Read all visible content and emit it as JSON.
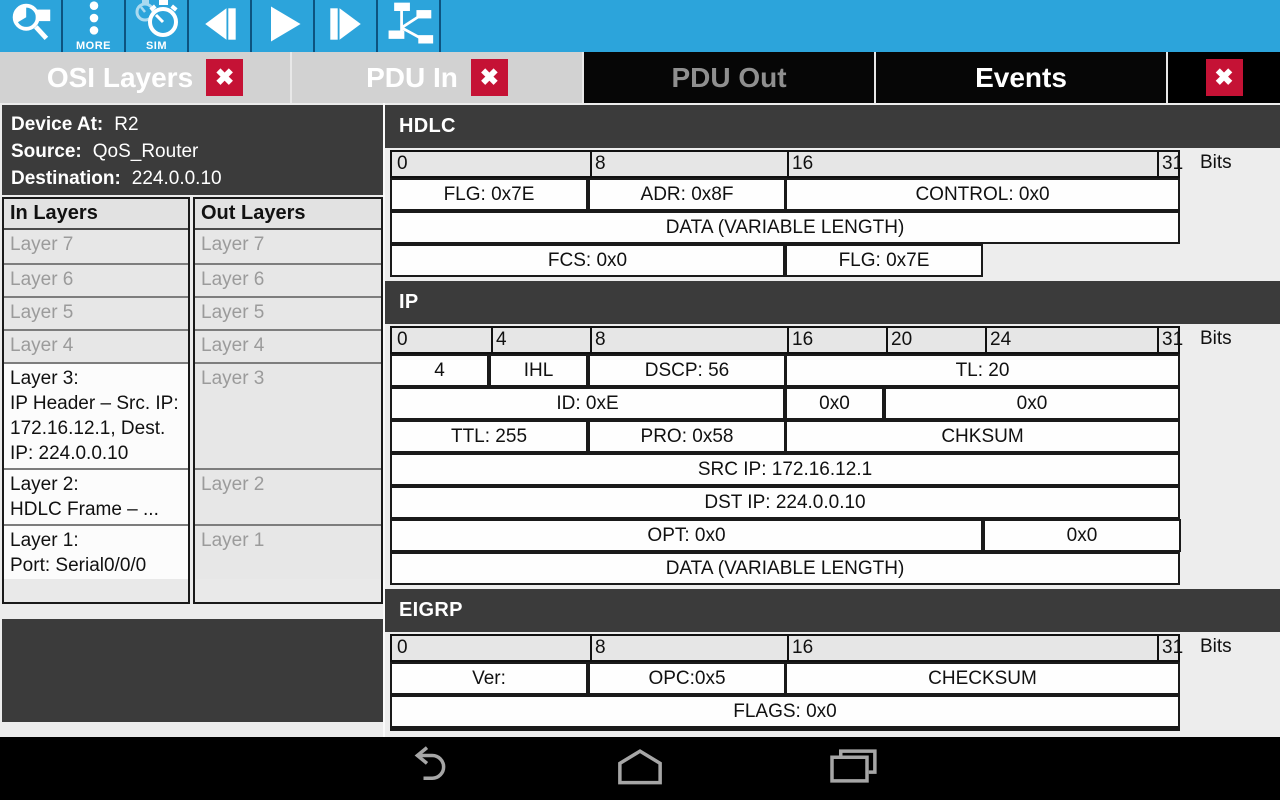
{
  "toolbar": {
    "buttons": [
      {
        "name": "inspect",
        "icon": "magnifier-inspect-icon",
        "label": ""
      },
      {
        "name": "more",
        "icon": "more-dots-icon",
        "label": "MORE"
      },
      {
        "name": "simulation",
        "icon": "stopwatch-sim-icon",
        "label": "SIM"
      },
      {
        "name": "step-back",
        "icon": "step-back-icon",
        "label": ""
      },
      {
        "name": "play",
        "icon": "play-icon",
        "label": ""
      },
      {
        "name": "step-forward",
        "icon": "step-forward-icon",
        "label": ""
      },
      {
        "name": "topology",
        "icon": "topology-icon",
        "label": ""
      }
    ]
  },
  "icons": {
    "close_glyph": "✖"
  },
  "tabs": [
    {
      "label": "OSI Layers",
      "closable": true,
      "open": true
    },
    {
      "label": "PDU In",
      "closable": true,
      "open": true
    },
    {
      "label": "PDU Out",
      "closable": false,
      "open": false
    },
    {
      "label": "Events",
      "closable": false,
      "open": false
    }
  ],
  "pdu_info": {
    "device_at_label": "Device At:",
    "device_at_value": "R2",
    "source_label": "Source:",
    "source_value": "QoS_Router",
    "destination_label": "Destination:",
    "destination_value": "224.0.0.10"
  },
  "layers": {
    "in_header": "In Layers",
    "out_header": "Out Layers",
    "in": [
      {
        "label": "Layer 7",
        "detail": "",
        "active": false
      },
      {
        "label": "Layer 6",
        "detail": "",
        "active": false
      },
      {
        "label": "Layer 5",
        "detail": "",
        "active": false
      },
      {
        "label": "Layer 4",
        "detail": "",
        "active": false
      },
      {
        "label": "Layer 3:",
        "detail": "IP Header – Src. IP: 172.16.12.1, Dest. IP: 224.0.0.10",
        "active": true
      },
      {
        "label": "Layer 2:",
        "detail": "HDLC Frame – ...",
        "active": true
      },
      {
        "label": "Layer 1:",
        "detail": "Port: Serial0/0/0",
        "active": true
      }
    ],
    "out": [
      {
        "label": "Layer 7",
        "detail": "",
        "active": false
      },
      {
        "label": "Layer 6",
        "detail": "",
        "active": false
      },
      {
        "label": "Layer 5",
        "detail": "",
        "active": false
      },
      {
        "label": "Layer 4",
        "detail": "",
        "active": false
      },
      {
        "label": "Layer 3",
        "detail": "",
        "active": false
      },
      {
        "label": "Layer 2",
        "detail": "",
        "active": false
      },
      {
        "label": "Layer 1",
        "detail": "",
        "active": false
      }
    ]
  },
  "pdu_formats": [
    {
      "title": "HDLC",
      "ruler": {
        "ticks": [
          0,
          8,
          16,
          31
        ],
        "unit": "Bits"
      },
      "rows": [
        [
          {
            "text": "FLG: 0x7E",
            "start": 0,
            "end": 8
          },
          {
            "text": "ADR: 0x8F",
            "start": 8,
            "end": 16
          },
          {
            "text": "CONTROL: 0x0",
            "start": 16,
            "end": 32
          }
        ],
        [
          {
            "text": "DATA (VARIABLE LENGTH)",
            "start": 0,
            "end": 32
          }
        ],
        [
          {
            "text": "FCS: 0x0",
            "start": 0,
            "end": 16
          },
          {
            "text": "FLG: 0x7E",
            "start": 16,
            "end": 24
          }
        ]
      ],
      "truncated_next_row": false
    },
    {
      "title": "IP",
      "ruler": {
        "ticks": [
          0,
          4,
          8,
          16,
          20,
          24,
          31
        ],
        "unit": "Bits"
      },
      "rows": [
        [
          {
            "text": "4",
            "start": 0,
            "end": 4
          },
          {
            "text": "IHL",
            "start": 4,
            "end": 8
          },
          {
            "text": "DSCP: 56",
            "start": 8,
            "end": 16
          },
          {
            "text": "TL: 20",
            "start": 16,
            "end": 32
          }
        ],
        [
          {
            "text": "ID: 0xE",
            "start": 0,
            "end": 16
          },
          {
            "text": "0x0",
            "start": 16,
            "end": 20
          },
          {
            "text": "0x0",
            "start": 20,
            "end": 32
          }
        ],
        [
          {
            "text": "TTL: 255",
            "start": 0,
            "end": 8
          },
          {
            "text": "PRO: 0x58",
            "start": 8,
            "end": 16
          },
          {
            "text": "CHKSUM",
            "start": 16,
            "end": 32
          }
        ],
        [
          {
            "text": "SRC IP: 172.16.12.1",
            "start": 0,
            "end": 32
          }
        ],
        [
          {
            "text": "DST IP: 224.0.0.10",
            "start": 0,
            "end": 32
          }
        ],
        [
          {
            "text": "OPT: 0x0",
            "start": 0,
            "end": 24
          },
          {
            "text": "0x0",
            "start": 24,
            "end": 32
          }
        ],
        [
          {
            "text": "DATA (VARIABLE LENGTH)",
            "start": 0,
            "end": 32
          }
        ]
      ],
      "truncated_next_row": false
    },
    {
      "title": "EIGRP",
      "ruler": {
        "ticks": [
          0,
          8,
          16,
          31
        ],
        "unit": "Bits"
      },
      "rows": [
        [
          {
            "text": "Ver:",
            "start": 0,
            "end": 8
          },
          {
            "text": "OPC:0x5",
            "start": 8,
            "end": 16
          },
          {
            "text": "CHECKSUM",
            "start": 16,
            "end": 32
          }
        ],
        [
          {
            "text": "FLAGS: 0x0",
            "start": 0,
            "end": 32
          }
        ]
      ],
      "truncated_next_row": true
    }
  ],
  "colors": {
    "toolbar_blue": "#2CA4DB",
    "close_red": "#C51235",
    "panel_dark": "#3B3B3B",
    "tab_light": "#D2D2D2"
  }
}
